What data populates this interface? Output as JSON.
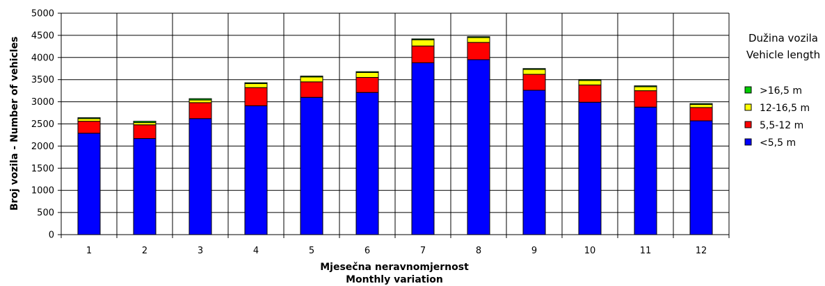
{
  "chart_data": {
    "type": "bar",
    "stacked": true,
    "categories": [
      "1",
      "2",
      "3",
      "4",
      "5",
      "6",
      "7",
      "8",
      "9",
      "10",
      "11",
      "12"
    ],
    "series": [
      {
        "name": "<5,5 m",
        "color": "#0000ff",
        "values": [
          2290,
          2170,
          2620,
          2910,
          3100,
          3210,
          3880,
          3950,
          3260,
          2990,
          2880,
          2570
        ]
      },
      {
        "name": "5,5-12 m",
        "color": "#ff0000",
        "values": [
          270,
          310,
          360,
          410,
          350,
          340,
          380,
          390,
          360,
          390,
          370,
          300
        ]
      },
      {
        "name": "12-16,5 m",
        "color": "#ffff00",
        "values": [
          60,
          50,
          60,
          90,
          110,
          110,
          140,
          110,
          110,
          100,
          90,
          70
        ]
      },
      {
        "name": ">16,5 m",
        "color": "#00cc00",
        "values": [
          20,
          30,
          30,
          20,
          20,
          20,
          20,
          20,
          20,
          20,
          20,
          20
        ]
      }
    ],
    "xlabel": [
      "Mjesečna neravnomjernost",
      "Monthly variation"
    ],
    "ylabel": "Broj vozila - Number of vehicles",
    "ylim": [
      0,
      5000
    ],
    "yticks": [
      0,
      500,
      1000,
      1500,
      2000,
      2500,
      3000,
      3500,
      4000,
      4500,
      5000
    ],
    "grid": true,
    "legend": {
      "title": [
        "Dužina vozila",
        "Vehicle length"
      ],
      "placement": "right",
      "order": [
        ">16,5 m",
        "12-16,5 m",
        "5,5-12 m",
        "<5,5 m"
      ]
    }
  }
}
